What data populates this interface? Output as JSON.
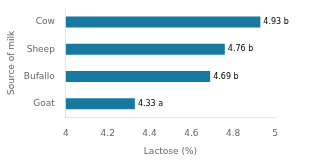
{
  "chart_data": {
    "type": "bar",
    "orientation": "horizontal",
    "categories": [
      "Cow",
      "Sheep",
      "Bufallo",
      "Goat"
    ],
    "values": [
      4.93,
      4.76,
      4.69,
      4.33
    ],
    "value_labels": [
      "4.93 b",
      "4.76 b",
      "4.69 b",
      "4.33 a"
    ],
    "data_labels": true,
    "color": "#1778a0",
    "xlabel": "Lactose (%)",
    "ylabel": "Source of milk",
    "xlim": [
      4.0,
      5.0
    ],
    "xticks": [
      4.0,
      4.2,
      4.4,
      4.6,
      4.8,
      5.0
    ],
    "grid": false
  }
}
